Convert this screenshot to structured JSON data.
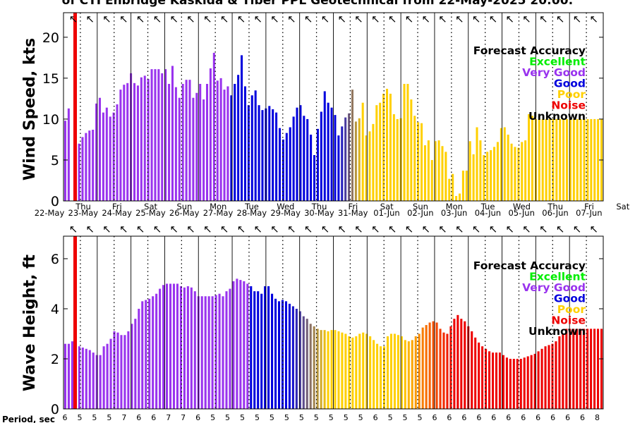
{
  "title": "of CTI Enbridge  Kaskida & Tiber PPL Geotechnical from 22-May-2025 20:00:",
  "period_label": "Period, sec",
  "accuracy_colors": {
    "Excellent": "#00ee00",
    "Very Good": "#9933ee",
    "Good": "#0000dd",
    "Poor": "#ffd000",
    "Noise": "#ee0000",
    "Unknown": "#000000"
  },
  "marker_color": "#ee0000",
  "day_labels": [
    {
      "dow": "Thu",
      "date": "22-May"
    },
    {
      "dow": "Fri",
      "date": "23-May"
    },
    {
      "dow": "Sat",
      "date": "24-May"
    },
    {
      "dow": "Sun",
      "date": "25-May"
    },
    {
      "dow": "Mon",
      "date": "26-May"
    },
    {
      "dow": "Tue",
      "date": "27-May"
    },
    {
      "dow": "Wed",
      "date": "28-May"
    },
    {
      "dow": "Thu",
      "date": "29-May"
    },
    {
      "dow": "Fri",
      "date": "30-May"
    },
    {
      "dow": "Sat",
      "date": "31-May"
    },
    {
      "dow": "Sun",
      "date": "01-Jun"
    },
    {
      "dow": "Mon",
      "date": "02-Jun"
    },
    {
      "dow": "Tue",
      "date": "03-Jun"
    },
    {
      "dow": "Wed",
      "date": "04-Jun"
    },
    {
      "dow": "Thu",
      "date": "05-Jun"
    },
    {
      "dow": "Fri",
      "date": "06-Jun"
    },
    {
      "dow": "Sat",
      "date": "07-Jun"
    }
  ],
  "periods": [
    6,
    5,
    5,
    5,
    5,
    5,
    5,
    6,
    7,
    7,
    6,
    6,
    6,
    6,
    7,
    6,
    7,
    6,
    6,
    5,
    5,
    5,
    5,
    5,
    5,
    5,
    5,
    5,
    5,
    5,
    5,
    5,
    5,
    5,
    5,
    5,
    5,
    5,
    5,
    5,
    5,
    5,
    6,
    5,
    5,
    5,
    5,
    5,
    5,
    6,
    6,
    6,
    6,
    5,
    6,
    6,
    6,
    6,
    6,
    6,
    6,
    6,
    6,
    6,
    6,
    6,
    6,
    6,
    6,
    6,
    6,
    6,
    8
  ],
  "chart_data": [
    {
      "type": "bar",
      "ylabel": "Wind Speed, kts",
      "ylim": [
        0,
        23
      ],
      "yticks": [
        0,
        5,
        10,
        15,
        20
      ],
      "legend_title": "Forecast Accuracy",
      "legend": [
        "Excellent",
        "Very Good",
        "Good",
        "Poor",
        "Noise",
        "Unknown"
      ],
      "legend_placement": "top-right",
      "grid": "vertical dotted lines every 6 hours",
      "accuracy_segments": [
        {
          "accuracy": "Very Good",
          "count": 48
        },
        {
          "accuracy": "Good",
          "count": 32
        },
        {
          "accuracy": "transition",
          "count": 6
        },
        {
          "accuracy": "Poor",
          "count": 68
        }
      ],
      "values": [
        9.8,
        11.3,
        0,
        6.3,
        7,
        7.8,
        8.3,
        8.6,
        8.7,
        11.9,
        12.6,
        10.8,
        11.4,
        10.3,
        10.8,
        11.8,
        13.6,
        14.2,
        14.4,
        15.6,
        14.4,
        14.1,
        15.1,
        15.3,
        14.9,
        16.1,
        16.1,
        16.1,
        15.6,
        16.1,
        14.3,
        16.5,
        13.9,
        12.6,
        14.3,
        14.8,
        14.8,
        12.6,
        13.2,
        14.3,
        12.4,
        14.3,
        16.2,
        18.1,
        14.7,
        15.0,
        13.6,
        14.0,
        12.9,
        14.3,
        15.4,
        17.8,
        14.0,
        11.7,
        12.9,
        13.5,
        11.7,
        11.1,
        11.3,
        11.6,
        11.2,
        10.8,
        8.9,
        7.5,
        8.3,
        9.0,
        10.3,
        11.4,
        11.7,
        10.4,
        10.0,
        8.1,
        5.6,
        8.8,
        10.9,
        13.4,
        12.0,
        11.4,
        10.5,
        8.0,
        9.1,
        10.2,
        10.7,
        13.6,
        9.7,
        10.1,
        12.0,
        8.0,
        8.5,
        9.4,
        11.7,
        12.0,
        13.1,
        13.7,
        13.1,
        10.6,
        10.0,
        10.1,
        14.3,
        14.3,
        12.4,
        10.4,
        9.6,
        9.5,
        6.8,
        7.4,
        5.0,
        7.3,
        7.4,
        6.7,
        6.0,
        2.7,
        3.3,
        0.6,
        0.9,
        3.7,
        3.7,
        7.3,
        5.7,
        9.0,
        7.4,
        5.6,
        6.0,
        6.2,
        6.6,
        7.2,
        8.9,
        9.0,
        8.1,
        7.0,
        6.6,
        6.5,
        7.2,
        7.4,
        10.6,
        10.4,
        10.0,
        10.0,
        10.0,
        10.0,
        10.0,
        10.0,
        10.0,
        10.0,
        10.0,
        10.0,
        10.0,
        10.0,
        10.0,
        10.0,
        10.0,
        10.0,
        10.0,
        10.0,
        10.0,
        10.0
      ]
    },
    {
      "type": "bar",
      "ylabel": "Wave Height, ft",
      "ylim": [
        0,
        6.9
      ],
      "yticks": [
        0,
        2,
        4,
        6
      ],
      "legend_title": "Forecast Accuracy",
      "legend": [
        "Excellent",
        "Very Good",
        "Good",
        "Poor",
        "Noise",
        "Unknown"
      ],
      "legend_placement": "top-right",
      "grid": "vertical dotted lines every 6 hours",
      "accuracy_segments": [
        {
          "accuracy": "Very Good",
          "count": 53
        },
        {
          "accuracy": "Good",
          "count": 12
        },
        {
          "accuracy": "transition",
          "count": 10
        },
        {
          "accuracy": "Poor",
          "count": 22
        },
        {
          "accuracy": "transition",
          "count": 14
        },
        {
          "accuracy": "Noise",
          "count": 64
        }
      ],
      "values": [
        2.6,
        2.6,
        2.7,
        2.6,
        2.5,
        2.45,
        2.4,
        2.35,
        2.25,
        2.15,
        2.15,
        2.5,
        2.6,
        2.8,
        3.1,
        3.05,
        2.95,
        2.95,
        3.1,
        3.4,
        3.6,
        4.0,
        4.3,
        4.35,
        4.4,
        4.5,
        4.6,
        4.8,
        4.95,
        5.0,
        5.0,
        5.0,
        5.0,
        4.9,
        4.85,
        4.9,
        4.85,
        4.7,
        4.5,
        4.5,
        4.5,
        4.5,
        4.5,
        4.55,
        4.6,
        4.5,
        4.7,
        4.8,
        5.1,
        5.2,
        5.15,
        5.1,
        5.0,
        4.9,
        4.7,
        4.7,
        4.6,
        4.9,
        4.9,
        4.6,
        4.4,
        4.3,
        4.35,
        4.3,
        4.2,
        4.1,
        4.0,
        3.9,
        3.7,
        3.6,
        3.4,
        3.3,
        3.2,
        3.15,
        3.15,
        3.1,
        3.15,
        3.15,
        3.1,
        3.05,
        3.0,
        2.9,
        2.85,
        2.9,
        3.0,
        3.05,
        3.0,
        2.9,
        2.75,
        2.6,
        2.5,
        2.5,
        2.9,
        3.0,
        3.0,
        2.95,
        2.9,
        2.75,
        2.7,
        2.75,
        2.9,
        3.0,
        3.25,
        3.35,
        3.45,
        3.5,
        3.45,
        3.2,
        3.05,
        3.0,
        3.3,
        3.6,
        3.75,
        3.6,
        3.5,
        3.3,
        3.1,
        2.85,
        2.65,
        2.5,
        2.4,
        2.3,
        2.25,
        2.25,
        2.25,
        2.15,
        2.05,
        2.0,
        2.0,
        2.0,
        2.0,
        2.05,
        2.1,
        2.15,
        2.2,
        2.3,
        2.4,
        2.5,
        2.55,
        2.6,
        2.7,
        2.9,
        3.0,
        3.2,
        3.2,
        3.2,
        3.2,
        3.2,
        3.2,
        3.2,
        3.2,
        3.2,
        3.2,
        3.2
      ]
    }
  ]
}
